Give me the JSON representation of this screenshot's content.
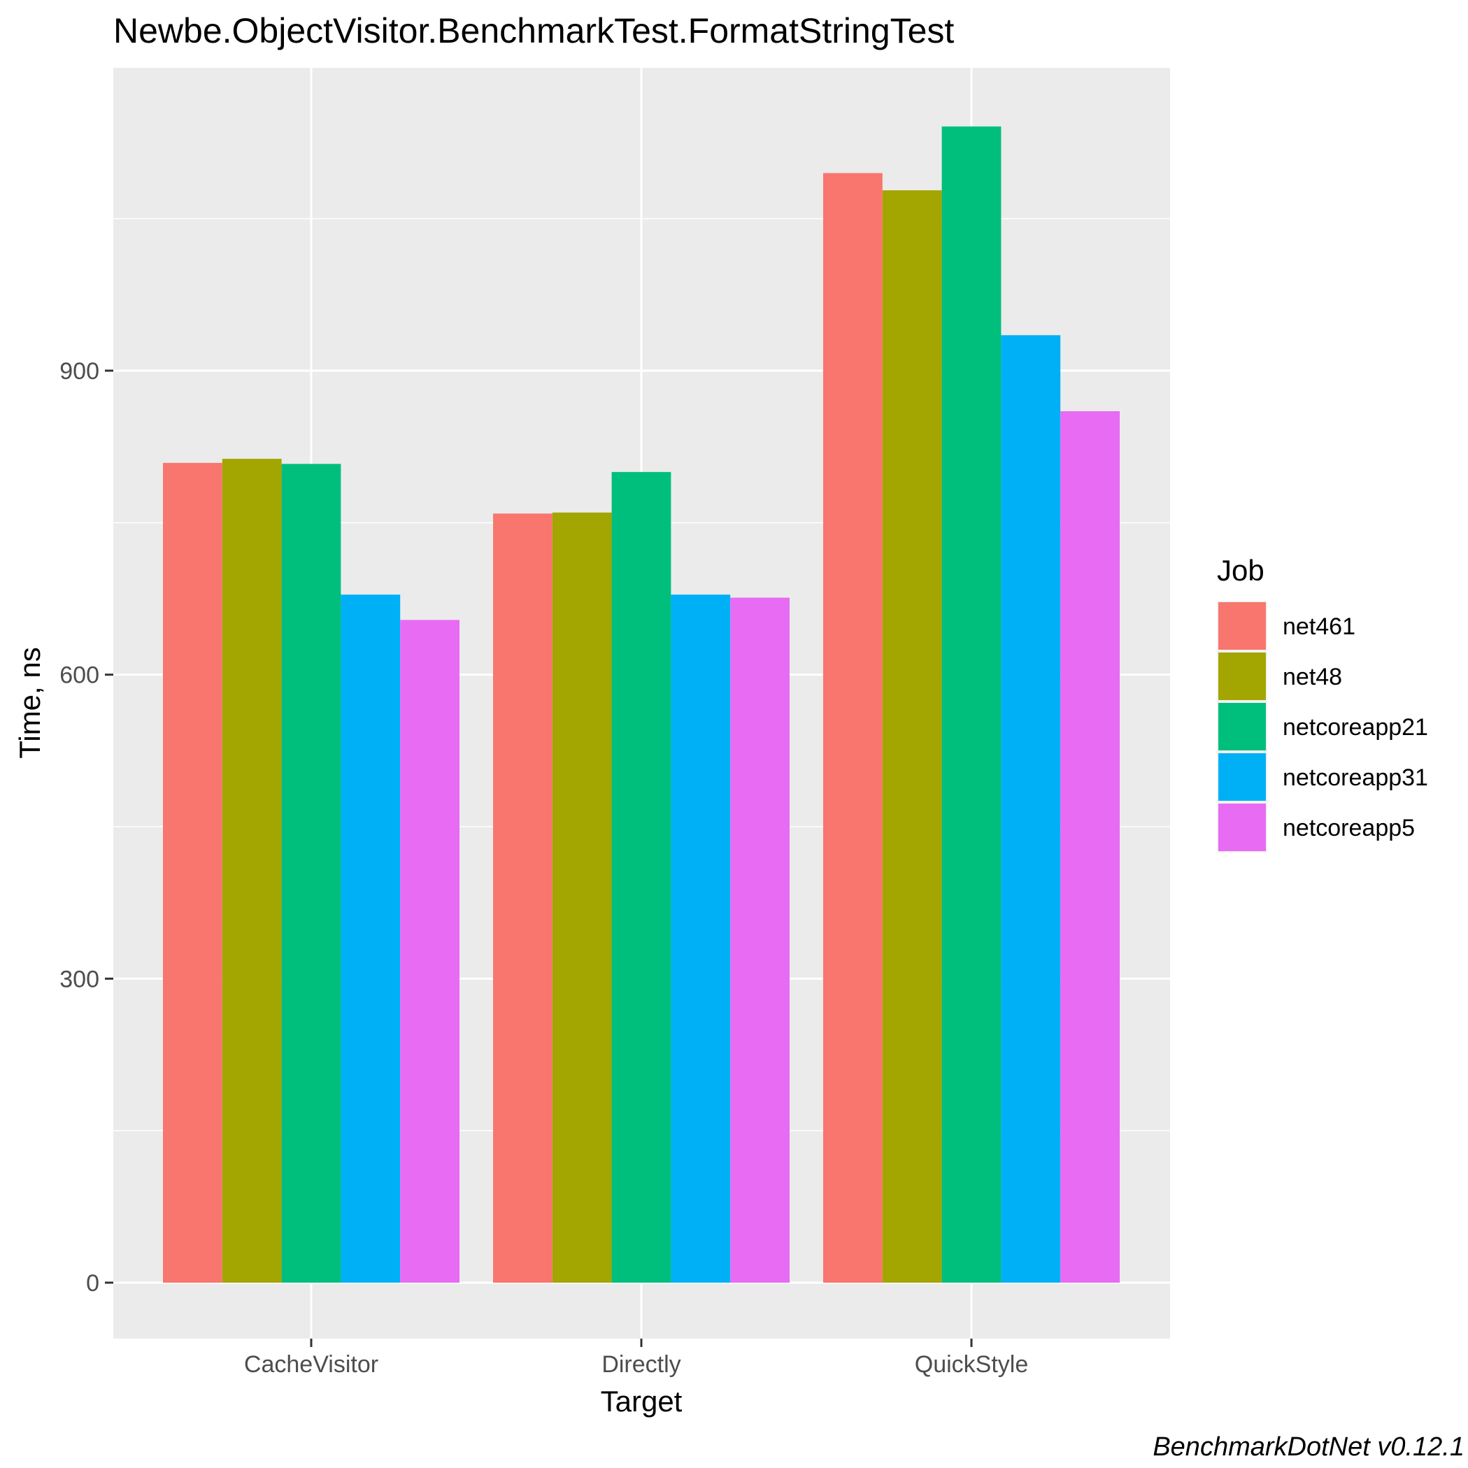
{
  "chart_data": {
    "type": "bar",
    "title": "Newbe.ObjectVisitor.BenchmarkTest.FormatStringTest",
    "xlabel": "Target",
    "ylabel": "Time, ns",
    "caption": "BenchmarkDotNet v0.12.1",
    "categories": [
      "CacheVisitor",
      "Directly",
      "QuickStyle"
    ],
    "yticks": [
      0,
      300,
      600,
      900
    ],
    "ylim": [
      -55,
      1200
    ],
    "grid": true,
    "legend": {
      "title": "Job",
      "placement": "right"
    },
    "series": [
      {
        "name": "net461",
        "color": "#F8766D",
        "values": [
          809,
          759,
          1095
        ]
      },
      {
        "name": "net48",
        "color": "#A3A500",
        "values": [
          813,
          760,
          1078
        ]
      },
      {
        "name": "netcoreapp21",
        "color": "#00BF7D",
        "values": [
          808,
          800,
          1141
        ]
      },
      {
        "name": "netcoreapp31",
        "color": "#00B0F6",
        "values": [
          679,
          679,
          935
        ]
      },
      {
        "name": "netcoreapp5",
        "color": "#E76BF3",
        "values": [
          654,
          676,
          860
        ]
      }
    ]
  }
}
